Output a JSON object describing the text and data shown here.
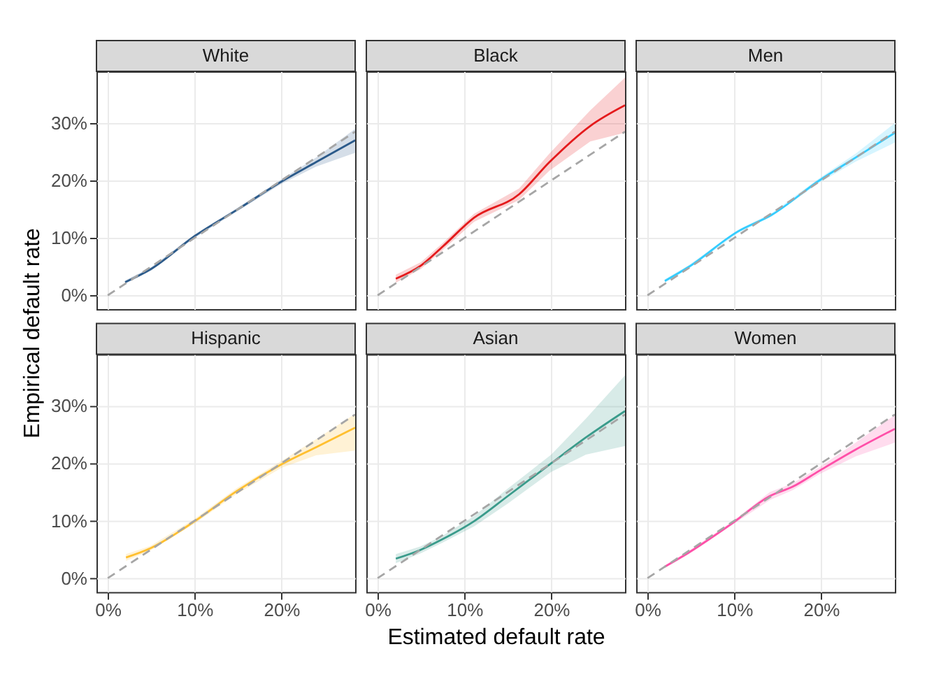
{
  "chart_data": [
    {
      "type": "line",
      "title": "White",
      "xlim": [
        -1.3,
        28.5
      ],
      "ylim": [
        -2.4,
        39
      ],
      "xticks": [
        0,
        10,
        20
      ],
      "yticks": [
        {
          "value": 0,
          "label": "0%"
        },
        {
          "value": 10,
          "label": "10%"
        },
        {
          "value": 20,
          "label": "20%"
        },
        {
          "value": 30,
          "label": "30%"
        }
      ],
      "grid": true,
      "tick_labels": "y",
      "series": [
        {
          "color": "#2b5a8a",
          "x": [
            2,
            5,
            10,
            15,
            20,
            24,
            28.5
          ],
          "values": [
            2.3,
            4.6,
            10.3,
            15,
            19.8,
            23.2,
            27
          ],
          "lower": [
            2,
            4.3,
            10,
            14.7,
            19.4,
            22.4,
            24.8
          ],
          "upper": [
            2.6,
            4.9,
            10.6,
            15.3,
            20.2,
            24,
            29
          ]
        },
        {
          "type": "line",
          "line_style": "dashed",
          "color": "#a6a6a6",
          "x": [
            0,
            28.5
          ],
          "values": [
            0,
            28.5
          ]
        }
      ]
    },
    {
      "type": "line",
      "title": "Black",
      "xlim": [
        -1.3,
        28.5
      ],
      "ylim": [
        -2.4,
        39
      ],
      "xticks": [
        0,
        10,
        20
      ],
      "yticks": [
        0,
        10,
        20,
        30
      ],
      "grid": true,
      "tick_labels": false,
      "series": [
        {
          "color": "#e41a1c",
          "x": [
            2.1,
            5,
            7.5,
            11.1,
            16.3,
            19.8,
            24.5,
            28.5
          ],
          "values": [
            2.9,
            5.2,
            8.5,
            13.5,
            17.6,
            23.2,
            29.5,
            33.1
          ],
          "lower": [
            2.2,
            4.6,
            7.9,
            12.8,
            16.6,
            21.7,
            26.8,
            28.3
          ],
          "upper": [
            3.6,
            5.8,
            9.1,
            14.2,
            18.6,
            24.7,
            32.2,
            37.9
          ]
        },
        {
          "type": "line",
          "line_style": "dashed",
          "color": "#a6a6a6",
          "x": [
            0,
            28.5
          ],
          "values": [
            0,
            28.5
          ]
        }
      ]
    },
    {
      "type": "line",
      "title": "Men",
      "xlim": [
        -1.3,
        28.5
      ],
      "ylim": [
        -2.4,
        39
      ],
      "xticks": [
        0,
        10,
        20
      ],
      "yticks": [
        0,
        10,
        20,
        30
      ],
      "grid": true,
      "tick_labels": false,
      "series": [
        {
          "color": "#33ccff",
          "x": [
            2,
            4.7,
            10.4,
            14.3,
            19.8,
            24,
            28.5
          ],
          "values": [
            2.5,
            4.9,
            11.1,
            14,
            20,
            24,
            28.3
          ],
          "lower": [
            2.2,
            4.6,
            10.8,
            13.7,
            19.6,
            23.3,
            26.6
          ],
          "upper": [
            2.8,
            5.2,
            11.4,
            14.3,
            20.4,
            24.7,
            30
          ]
        },
        {
          "type": "line",
          "line_style": "dashed",
          "color": "#a6a6a6",
          "x": [
            0,
            28.5
          ],
          "values": [
            0,
            28.5
          ]
        }
      ]
    },
    {
      "type": "line",
      "title": "Hispanic",
      "ylabel": "Empirical default rate",
      "xlim": [
        -1.3,
        28.5
      ],
      "ylim": [
        -2.4,
        39
      ],
      "xticks": [
        {
          "value": 0,
          "label": "0%"
        },
        {
          "value": 10,
          "label": "10%"
        },
        {
          "value": 20,
          "label": "20%"
        }
      ],
      "yticks": [
        {
          "value": 0,
          "label": "0%"
        },
        {
          "value": 10,
          "label": "10%"
        },
        {
          "value": 20,
          "label": "20%"
        },
        {
          "value": 30,
          "label": "30%"
        }
      ],
      "grid": true,
      "series": [
        {
          "color": "#ffbf2f",
          "x": [
            2.1,
            4.9,
            10,
            14.8,
            20,
            24,
            28.5
          ],
          "values": [
            3.6,
            5.2,
            9.9,
            15.1,
            19.8,
            22.8,
            26.2
          ],
          "lower": [
            3,
            4.8,
            9.5,
            14.6,
            19.2,
            21.4,
            22.2
          ],
          "upper": [
            4.2,
            5.6,
            10.3,
            15.6,
            20.4,
            24.2,
            28.6
          ]
        },
        {
          "type": "line",
          "line_style": "dashed",
          "color": "#a6a6a6",
          "x": [
            0,
            28.5
          ],
          "values": [
            0,
            28.5
          ]
        }
      ]
    },
    {
      "type": "line",
      "title": "Asian",
      "xlabel": "Estimated default rate",
      "xlim": [
        -1.3,
        28.5
      ],
      "ylim": [
        -2.4,
        39
      ],
      "xticks": [
        {
          "value": 0,
          "label": "0%"
        },
        {
          "value": 10,
          "label": "10%"
        },
        {
          "value": 20,
          "label": "20%"
        }
      ],
      "yticks": [
        0,
        10,
        20,
        30
      ],
      "grid": true,
      "tick_labels": "x",
      "series": [
        {
          "color": "#3a9b8b",
          "x": [
            2.1,
            4.9,
            7.5,
            11.1,
            15,
            20,
            24,
            28.5
          ],
          "values": [
            3.4,
            4.9,
            6.8,
            9.9,
            14.3,
            20,
            24.5,
            29.1
          ],
          "lower": [
            2.6,
            4.3,
            6.2,
            9,
            13,
            18.5,
            21.5,
            23
          ],
          "upper": [
            4.2,
            5.5,
            7.4,
            10.8,
            15.6,
            21.5,
            27.8,
            35.3
          ]
        },
        {
          "type": "line",
          "line_style": "dashed",
          "color": "#a6a6a6",
          "x": [
            0,
            28.5
          ],
          "values": [
            0,
            28.5
          ]
        }
      ]
    },
    {
      "type": "line",
      "title": "Women",
      "xlim": [
        -1.3,
        28.5
      ],
      "ylim": [
        -2.4,
        39
      ],
      "xticks": [
        {
          "value": 0,
          "label": "0%"
        },
        {
          "value": 10,
          "label": "10%"
        },
        {
          "value": 20,
          "label": "20%"
        }
      ],
      "yticks": [
        0,
        10,
        20,
        30
      ],
      "grid": true,
      "tick_labels": "x",
      "series": [
        {
          "color": "#ff4fa8",
          "x": [
            2,
            4.7,
            9.9,
            14.1,
            16.7,
            19.8,
            24,
            28.5
          ],
          "values": [
            2,
            4.4,
            9.7,
            14.3,
            15.9,
            18.7,
            22.4,
            26
          ],
          "lower": [
            1.8,
            4.1,
            9.4,
            13.6,
            15.3,
            18.1,
            21.2,
            23.6
          ],
          "upper": [
            2.2,
            4.7,
            10,
            15,
            16.5,
            19.3,
            23.6,
            28.4
          ]
        },
        {
          "type": "line",
          "line_style": "dashed",
          "color": "#a6a6a6",
          "x": [
            0,
            28.5
          ],
          "values": [
            0,
            28.5
          ]
        }
      ]
    }
  ]
}
